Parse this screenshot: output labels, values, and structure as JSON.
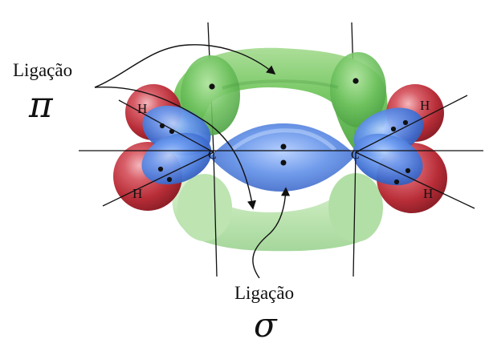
{
  "labels": {
    "pi_label": "Ligação",
    "pi_symbol": "π",
    "sigma_label": "Ligação",
    "sigma_symbol": "σ"
  },
  "atoms": {
    "carbon_left": "C",
    "carbon_right": "C",
    "hydrogen_top_left": "H",
    "hydrogen_bottom_left": "H",
    "hydrogen_top_right": "H",
    "hydrogen_bottom_right": "H"
  },
  "colors": {
    "pi_orbital": "#6fc35d",
    "sigma_orbital": "#4b79d8",
    "hydrogen": "#c93a45",
    "line": "#111111",
    "dot": "#111111"
  }
}
